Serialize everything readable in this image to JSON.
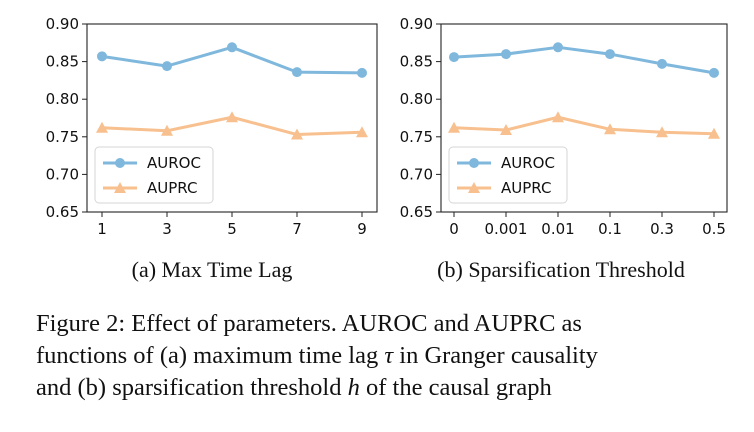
{
  "chart_data": [
    {
      "type": "line",
      "categories": [
        "1",
        "3",
        "5",
        "7",
        "9"
      ],
      "series": [
        {
          "name": "AUROC",
          "values": [
            0.857,
            0.844,
            0.869,
            0.836,
            0.835
          ],
          "color": "#7fb8dc",
          "marker": "circle"
        },
        {
          "name": "AUPRC",
          "values": [
            0.762,
            0.758,
            0.776,
            0.753,
            0.756
          ],
          "color": "#f7c08e",
          "marker": "triangle"
        }
      ],
      "yticks": [
        "0.65",
        "0.70",
        "0.75",
        "0.80",
        "0.85",
        "0.90"
      ],
      "ylim": [
        0.65,
        0.9
      ],
      "legend": "lower-left",
      "grid": false,
      "subcaption": "(a) Max Time Lag"
    },
    {
      "type": "line",
      "categories": [
        "0",
        "0.001",
        "0.01",
        "0.1",
        "0.3",
        "0.5"
      ],
      "series": [
        {
          "name": "AUROC",
          "values": [
            0.856,
            0.86,
            0.869,
            0.86,
            0.847,
            0.835
          ],
          "color": "#7fb8dc",
          "marker": "circle"
        },
        {
          "name": "AUPRC",
          "values": [
            0.762,
            0.759,
            0.776,
            0.76,
            0.756,
            0.754
          ],
          "color": "#f7c08e",
          "marker": "triangle"
        }
      ],
      "yticks": [
        "0.65",
        "0.70",
        "0.75",
        "0.80",
        "0.85",
        "0.90"
      ],
      "ylim": [
        0.65,
        0.9
      ],
      "legend": "lower-left",
      "grid": false,
      "subcaption": "(b) Sparsification Threshold"
    }
  ],
  "caption": {
    "line1": "Figure 2: Effect of parameters. AUROC and AUPRC as",
    "line2_a": "functions of (a) maximum time lag ",
    "line2_sym": "τ",
    "line2_b": " in Granger causality",
    "line3_a": "and (b) sparsification threshold ",
    "line3_sym": "h",
    "line3_b": " of the causal graph"
  }
}
